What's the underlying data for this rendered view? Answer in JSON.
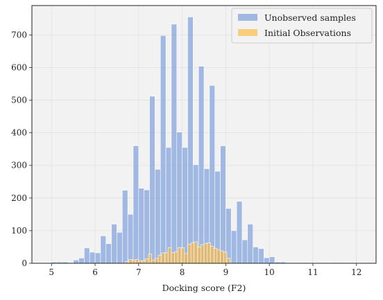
{
  "chart_data": {
    "type": "bar",
    "title": "",
    "xlabel": "Docking score (F2)",
    "ylabel": "",
    "xlim": [
      4.55,
      12.45
    ],
    "ylim": [
      0,
      790
    ],
    "xticks": [
      "5",
      "6",
      "7",
      "8",
      "9",
      "10",
      "11",
      "12"
    ],
    "yticks": [
      "0",
      "100",
      "200",
      "300",
      "400",
      "500",
      "600",
      "700"
    ],
    "grid": true,
    "legend_position": "top-right",
    "background": "#f2f2f2",
    "series": [
      {
        "name": "Unobserved samples",
        "color": "#7e9fdc",
        "alpha": 0.7,
        "bin_start": 5.0,
        "bin_width": 0.125,
        "values": [
          4,
          4,
          4,
          0,
          10,
          16,
          47,
          34,
          32,
          84,
          60,
          120,
          95,
          224,
          150,
          360,
          230,
          225,
          512,
          288,
          698,
          355,
          733,
          402,
          355,
          755,
          302,
          604,
          290,
          545,
          282,
          360,
          168,
          100,
          190,
          72,
          120,
          50,
          45,
          17,
          20,
          4,
          4,
          2,
          2,
          0,
          2,
          1,
          1,
          1,
          1,
          1,
          2,
          1,
          1,
          1,
          1
        ]
      },
      {
        "name": "Initial Observations",
        "color": "#fdb93d",
        "alpha": 0.65,
        "bin_start": 6.7,
        "bin_width": 0.075,
        "values": [
          5,
          12,
          10,
          12,
          8,
          8,
          14,
          28,
          10,
          15,
          25,
          32,
          32,
          48,
          33,
          35,
          48,
          48,
          30,
          58,
          62,
          66,
          50,
          57,
          60,
          63,
          52,
          46,
          42,
          38,
          34,
          16
        ]
      }
    ]
  }
}
